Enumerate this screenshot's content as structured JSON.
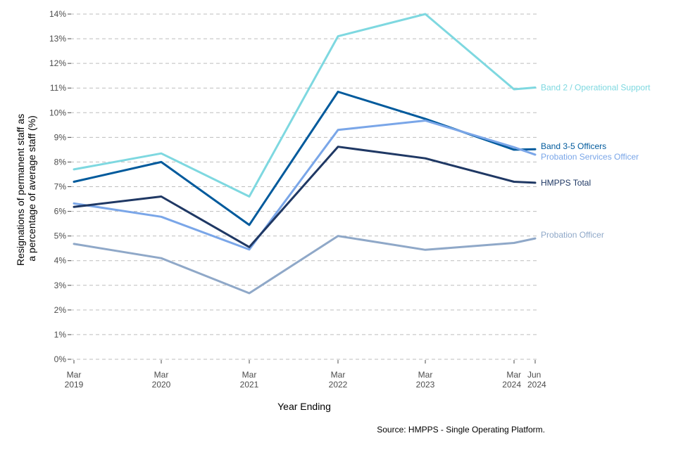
{
  "chart_data": {
    "type": "line",
    "x": [
      "Mar 2019",
      "Mar 2020",
      "Mar 2021",
      "Mar 2022",
      "Mar 2023",
      "Mar 2024",
      "Jun 2024"
    ],
    "x_tick_labels": [
      {
        "line1": "Mar",
        "line2": "2019"
      },
      {
        "line1": "Mar",
        "line2": "2020"
      },
      {
        "line1": "Mar",
        "line2": "2021"
      },
      {
        "line1": "Mar",
        "line2": "2022"
      },
      {
        "line1": "Mar",
        "line2": "2023"
      },
      {
        "line1": "Mar",
        "line2": "2024"
      },
      {
        "line1": "Jun",
        "line2": "2024"
      }
    ],
    "y_ticks": [
      "0%",
      "1%",
      "2%",
      "3%",
      "4%",
      "5%",
      "6%",
      "7%",
      "8%",
      "9%",
      "10%",
      "11%",
      "12%",
      "13%",
      "14%"
    ],
    "ylim": [
      0,
      14
    ],
    "grid": true,
    "xlabel": "Year Ending",
    "ylabel_line1": "Resignations of permanent staff as",
    "ylabel_line2": "a percentage of average staff (%)",
    "caption": "Source: HMPPS - Single Operating Platform.",
    "series": [
      {
        "name": "Band 2 / Operational Support",
        "color": "#7ed8e0",
        "values": [
          7.7,
          8.35,
          6.6,
          13.1,
          14.0,
          10.95,
          11.02
        ]
      },
      {
        "name": "Band 3-5 Officers",
        "color": "#005a9c",
        "values": [
          7.2,
          8.0,
          5.45,
          10.85,
          9.75,
          8.5,
          8.52
        ]
      },
      {
        "name": "Probation Services Officer",
        "color": "#7aa6e8",
        "values": [
          6.32,
          5.78,
          4.45,
          9.3,
          9.68,
          8.6,
          8.3
        ]
      },
      {
        "name": "HMPPS Total",
        "color": "#1f3864",
        "values": [
          6.18,
          6.6,
          4.55,
          8.62,
          8.15,
          7.2,
          7.16
        ]
      },
      {
        "name": "Probation Officer",
        "color": "#8fa8c8",
        "values": [
          4.68,
          4.1,
          2.68,
          5.0,
          4.44,
          4.72,
          4.9
        ]
      }
    ]
  }
}
